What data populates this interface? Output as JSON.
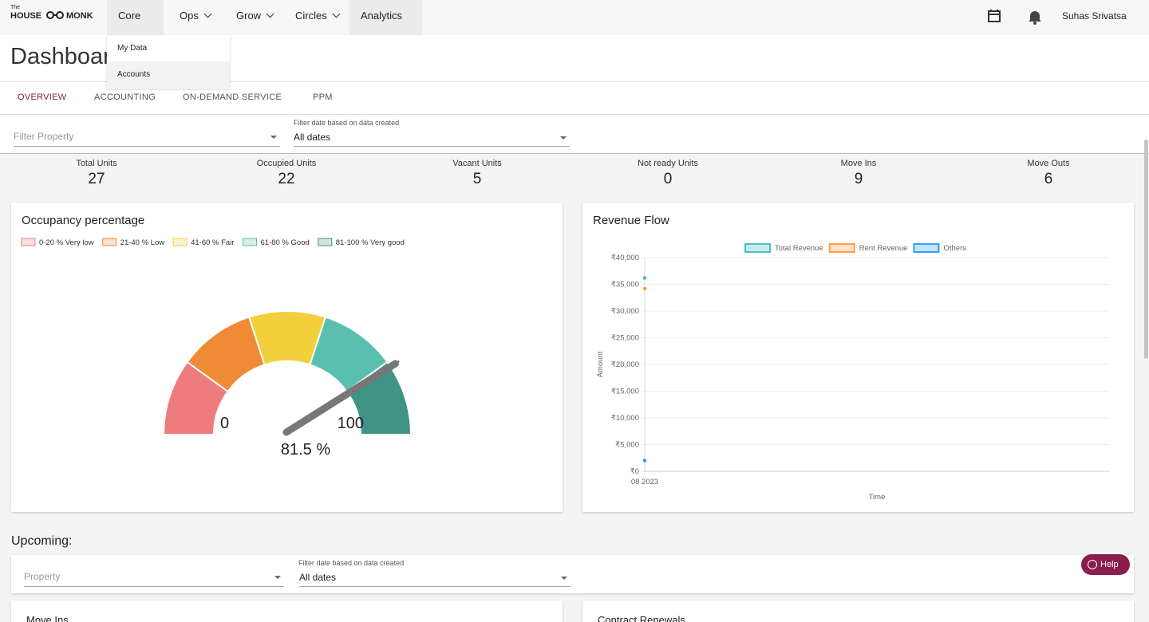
{
  "logo": {
    "small": "The",
    "left": "HOUSE",
    "right": "MONK"
  },
  "nav": {
    "items": [
      "Core",
      "Ops",
      "Grow",
      "Circles",
      "Analytics"
    ],
    "user": "Suhas Srivatsa"
  },
  "dropdown": {
    "items": [
      "My Data",
      "Accounts"
    ]
  },
  "page": {
    "title": "Dashboard"
  },
  "tabs": [
    "OVERVIEW",
    "ACCOUNTING",
    "ON-DEMAND SERVICE",
    "PPM"
  ],
  "filters": {
    "property": "Filter Property",
    "date_label": "Filter date based on data created",
    "date_value": "All dates"
  },
  "stats": [
    {
      "label": "Total Units",
      "value": 27
    },
    {
      "label": "Occupied Units",
      "value": 22
    },
    {
      "label": "Vacant Units",
      "value": 5
    },
    {
      "label": "Not ready Units",
      "value": 0
    },
    {
      "label": "Move Ins",
      "value": 9
    },
    {
      "label": "Move Outs",
      "value": 6
    }
  ],
  "chart_data": [
    {
      "type": "gauge",
      "title": "Occupancy percentage",
      "bands": [
        {
          "name": "0-20 % Very low",
          "range": [
            0,
            20
          ],
          "color": "#ef7c7c"
        },
        {
          "name": "21-40 % Low",
          "range": [
            20,
            40
          ],
          "color": "#f08a35"
        },
        {
          "name": "41-60 % Fair",
          "range": [
            40,
            60
          ],
          "color": "#f2d03c"
        },
        {
          "name": "61-80 % Good",
          "range": [
            60,
            80
          ],
          "color": "#5bbfb0"
        },
        {
          "name": "81-100 % Very good",
          "range": [
            80,
            100
          ],
          "color": "#409486"
        }
      ],
      "ylim": [
        0,
        100
      ],
      "yticks": [
        0,
        100
      ],
      "value": 81.5,
      "value_label": "81.5 %",
      "needle_color": "#777777"
    },
    {
      "type": "line",
      "title": "Revenue Flow",
      "x_label": "Time",
      "y_label": "Amount",
      "categories": [
        "08 2023"
      ],
      "series": [
        {
          "name": "Total Revenue",
          "color": "#4bc0c0",
          "values": [
            36200
          ]
        },
        {
          "name": "Rent Revenue",
          "color": "#ff9f40",
          "values": [
            34200
          ]
        },
        {
          "name": "Others",
          "color": "#36a2eb",
          "values": [
            2000
          ]
        }
      ],
      "ylim": [
        0,
        40000
      ],
      "yticks": [
        {
          "value": 0,
          "label": "₹0"
        },
        {
          "value": 5000,
          "label": "₹5,000"
        },
        {
          "value": 10000,
          "label": "₹10,000"
        },
        {
          "value": 15000,
          "label": "₹15,000"
        },
        {
          "value": 20000,
          "label": "₹20,000"
        },
        {
          "value": 25000,
          "label": "₹25,000"
        },
        {
          "value": 30000,
          "label": "₹30,000"
        },
        {
          "value": 35000,
          "label": "₹35,000"
        },
        {
          "value": 40000,
          "label": "₹40,000"
        }
      ],
      "grid": true
    }
  ],
  "upcoming": {
    "title": "Upcoming:",
    "property": "Property",
    "date_label": "Filter date based on data created",
    "date_value": "All dates",
    "cards": [
      "Move Ins",
      "Contract Renewals"
    ]
  },
  "help": "Help"
}
